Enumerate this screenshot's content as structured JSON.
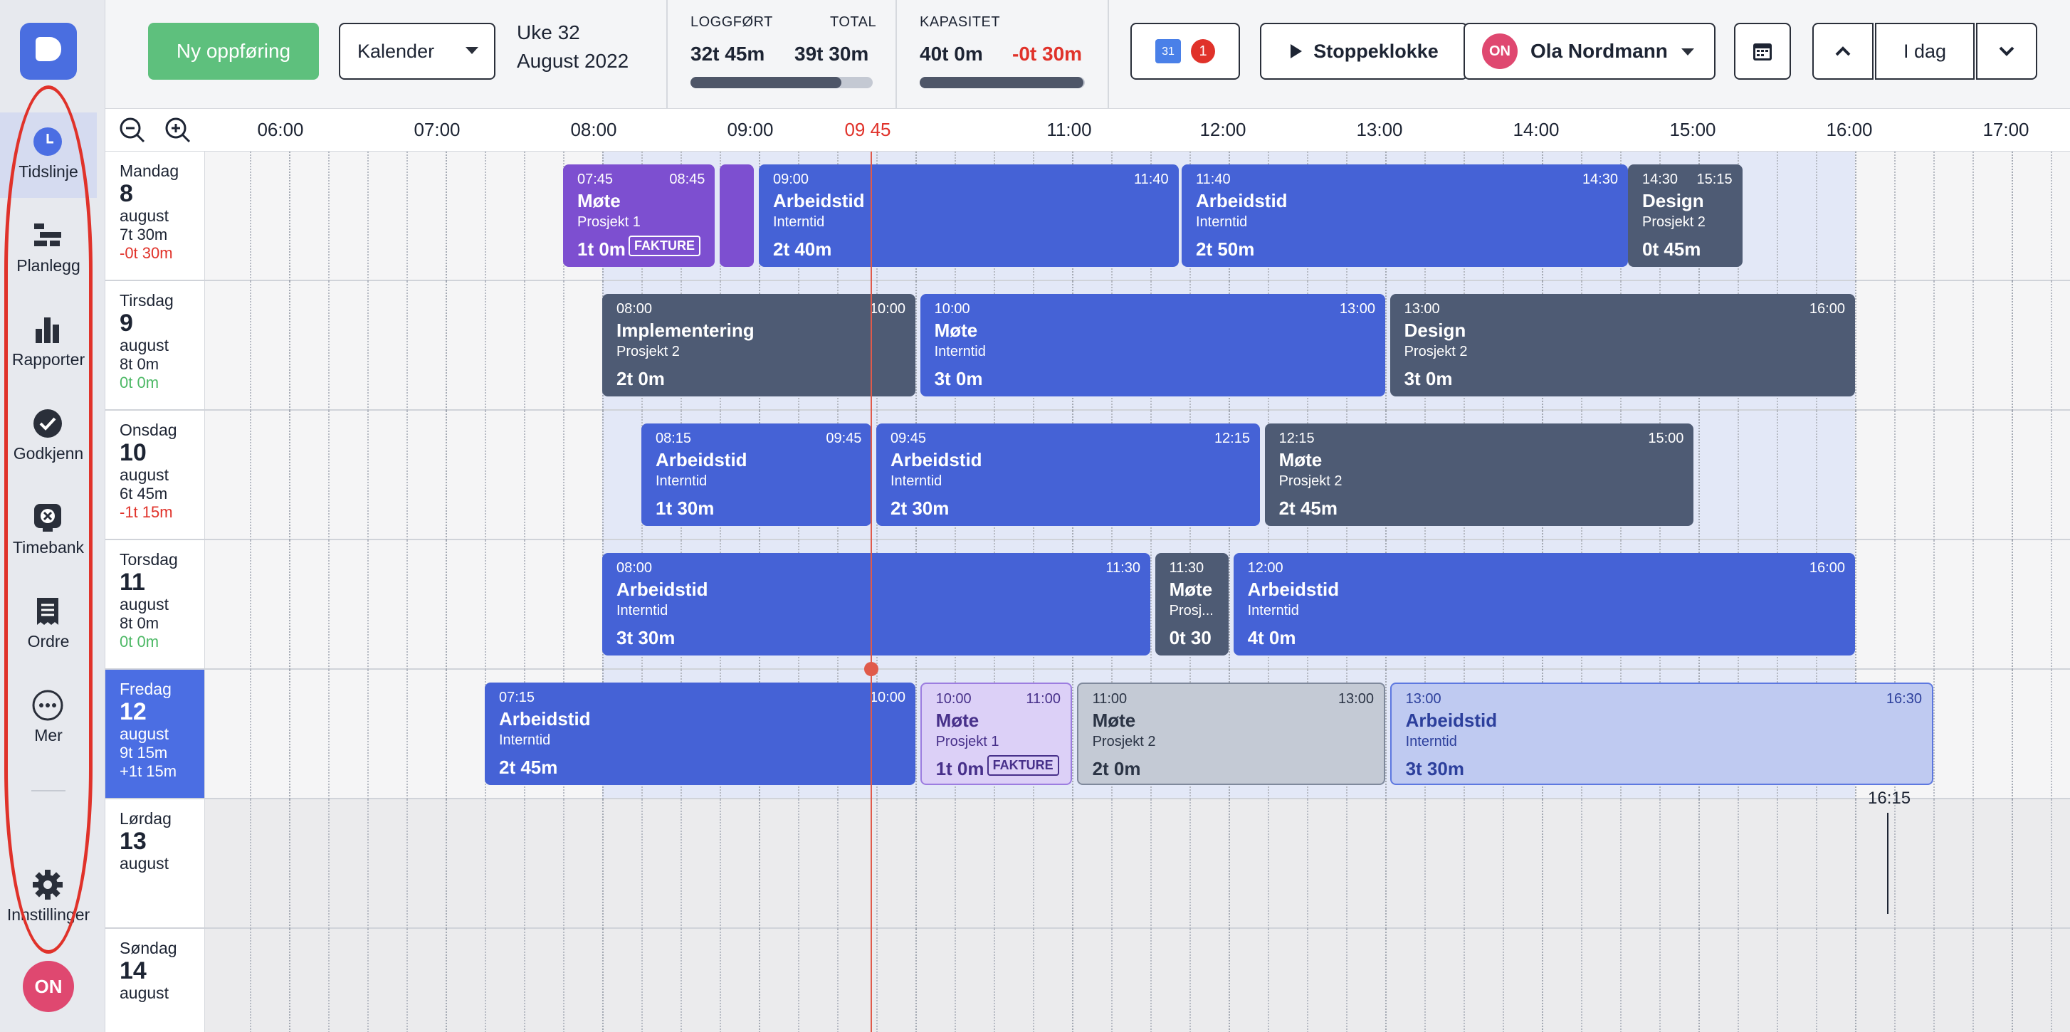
{
  "sidebar": {
    "items": [
      {
        "label": "Tidslinje",
        "icon": "clock-icon"
      },
      {
        "label": "Planlegg",
        "icon": "planner-icon"
      },
      {
        "label": "Rapporter",
        "icon": "bar-chart-icon"
      },
      {
        "label": "Godkjenn",
        "icon": "check-circle-icon"
      },
      {
        "label": "Timebank",
        "icon": "timebank-icon"
      },
      {
        "label": "Ordre",
        "icon": "receipt-icon"
      },
      {
        "label": "Mer",
        "icon": "more-icon"
      },
      {
        "label": "Innstillinger",
        "icon": "gear-icon"
      }
    ],
    "user_initials": "ON"
  },
  "topbar": {
    "new_entry": "Ny oppføring",
    "view_select": "Kalender",
    "week": "Uke 32",
    "month": "August 2022",
    "logged_label": "LOGGFØRT",
    "logged_value": "32t 45m",
    "total_label": "TOTAL",
    "total_value": "39t 30m",
    "logged_progress": 0.83,
    "capacity_label": "KAPASITET",
    "capacity_value": "40t 0m",
    "capacity_diff": "-0t 30m",
    "capacity_progress": 0.99,
    "calendar_badge_day": "31",
    "calendar_badge_count": "1",
    "stopwatch": "Stoppeklokke",
    "user_initials": "ON",
    "user_name": "Ola Nordmann",
    "today": "I dag"
  },
  "axis": {
    "hours": [
      "06:00",
      "07:00",
      "08:00",
      "09:00",
      "09 45",
      "11:00",
      "12:00",
      "13:00",
      "14:00",
      "15:00",
      "16:00",
      "17:00"
    ]
  },
  "days": [
    {
      "name": "Mandag",
      "num": "8",
      "month": "august",
      "hours": "7t 30m",
      "flex": "-0t 30m",
      "flex_type": "neg",
      "events": [
        {
          "start": "07:45",
          "end": "08:45",
          "name": "Møte",
          "project": "Prosjekt 1",
          "duration": "1t 0m",
          "tag": "FAKTURE",
          "style": "purple"
        },
        {
          "start": "",
          "end": "",
          "name": "",
          "project": "",
          "duration": "",
          "tag": "",
          "style": "purple"
        },
        {
          "start": "09:00",
          "end": "11:40",
          "name": "Arbeidstid",
          "project": "Interntid",
          "duration": "2t 40m",
          "tag": "",
          "style": "blue"
        },
        {
          "start": "11:40",
          "end": "14:30",
          "name": "Arbeidstid",
          "project": "Interntid",
          "duration": "2t 50m",
          "tag": "",
          "style": "blue"
        },
        {
          "start": "14:30",
          "end": "15:15",
          "name": "Design",
          "project": "Prosjekt 2",
          "duration": "0t 45m",
          "tag": "",
          "style": "grey"
        }
      ]
    },
    {
      "name": "Tirsdag",
      "num": "9",
      "month": "august",
      "hours": "8t 0m",
      "flex": "0t 0m",
      "flex_type": "pos",
      "events": [
        {
          "start": "08:00",
          "end": "10:00",
          "name": "Implementering",
          "project": "Prosjekt 2",
          "duration": "2t 0m",
          "tag": "",
          "style": "grey"
        },
        {
          "start": "10:00",
          "end": "13:00",
          "name": "Møte",
          "project": "Interntid",
          "duration": "3t 0m",
          "tag": "",
          "style": "blue"
        },
        {
          "start": "13:00",
          "end": "16:00",
          "name": "Design",
          "project": "Prosjekt 2",
          "duration": "3t 0m",
          "tag": "",
          "style": "grey"
        }
      ]
    },
    {
      "name": "Onsdag",
      "num": "10",
      "month": "august",
      "hours": "6t 45m",
      "flex": "-1t 15m",
      "flex_type": "neg",
      "events": [
        {
          "start": "08:15",
          "end": "09:45",
          "name": "Arbeidstid",
          "project": "Interntid",
          "duration": "1t 30m",
          "tag": "",
          "style": "blue"
        },
        {
          "start": "09:45",
          "end": "12:15",
          "name": "Arbeidstid",
          "project": "Interntid",
          "duration": "2t 30m",
          "tag": "",
          "style": "blue"
        },
        {
          "start": "12:15",
          "end": "15:00",
          "name": "Møte",
          "project": "Prosjekt 2",
          "duration": "2t 45m",
          "tag": "",
          "style": "grey"
        }
      ]
    },
    {
      "name": "Torsdag",
      "num": "11",
      "month": "august",
      "hours": "8t 0m",
      "flex": "0t 0m",
      "flex_type": "pos",
      "events": [
        {
          "start": "08:00",
          "end": "11:30",
          "name": "Arbeidstid",
          "project": "Interntid",
          "duration": "3t 30m",
          "tag": "",
          "style": "blue"
        },
        {
          "start": "11:30",
          "end": "",
          "name": "Møte",
          "project": "Prosj...",
          "duration": "0t 30",
          "tag": "",
          "style": "grey"
        },
        {
          "start": "12:00",
          "end": "16:00",
          "name": "Arbeidstid",
          "project": "Interntid",
          "duration": "4t 0m",
          "tag": "",
          "style": "blue"
        }
      ]
    },
    {
      "name": "Fredag",
      "num": "12",
      "month": "august",
      "hours": "9t 15m",
      "flex": "+1t 15m",
      "flex_type": "pos",
      "events": [
        {
          "start": "07:15",
          "end": "10:00",
          "name": "Arbeidstid",
          "project": "Interntid",
          "duration": "2t 45m",
          "tag": "",
          "style": "blue"
        },
        {
          "start": "10:00",
          "end": "11:00",
          "name": "Møte",
          "project": "Prosjekt 1",
          "duration": "1t 0m",
          "tag": "FAKTURE",
          "style": "ppurple"
        },
        {
          "start": "11:00",
          "end": "13:00",
          "name": "Møte",
          "project": "Prosjekt 2",
          "duration": "2t 0m",
          "tag": "",
          "style": "pgrey"
        },
        {
          "start": "13:00",
          "end": "16:30",
          "name": "Arbeidstid",
          "project": "Interntid",
          "duration": "3t 30m",
          "tag": "",
          "style": "pblue"
        }
      ]
    },
    {
      "name": "Lørdag",
      "num": "13",
      "month": "august",
      "hours": "",
      "flex": "",
      "flex_type": "",
      "events": []
    },
    {
      "name": "Søndag",
      "num": "14",
      "month": "august",
      "hours": "",
      "flex": "",
      "flex_type": "",
      "events": []
    }
  ],
  "cursor_time": "16:15"
}
